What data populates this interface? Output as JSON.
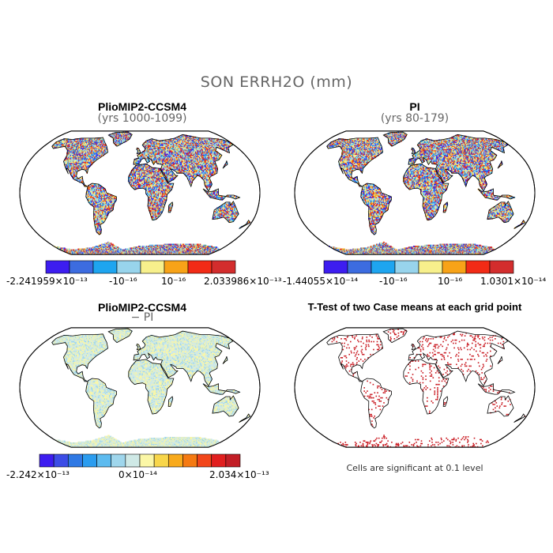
{
  "figure": {
    "title": "SON ERRH2O (mm)"
  },
  "panels": [
    {
      "title": "PlioMIP2-CCSM4",
      "subtitle": "(yrs 1000-1099)",
      "pattern": "mixed",
      "colorbar": {
        "colors": [
          "#3d1df0",
          "#3c6ce0",
          "#1ea5f0",
          "#98d4ec",
          "#f7f08c",
          "#f8a318",
          "#f22b16",
          "#d32d2d"
        ],
        "min_label": "-2.241959×10⁻¹³",
        "mid_left_label": "-10⁻¹⁶",
        "mid_right_label": "10⁻¹⁶",
        "max_label": "2.033986×10⁻¹³"
      }
    },
    {
      "title": "PI",
      "subtitle": "(yrs 80-179)",
      "pattern": "mixed",
      "colorbar": {
        "colors": [
          "#3d1df0",
          "#3c6ce0",
          "#1ea5f0",
          "#98d4ec",
          "#f7f08c",
          "#f8a318",
          "#f22b16",
          "#d32d2d"
        ],
        "min_label": "-1.44055×10⁻¹⁴",
        "mid_left_label": "-10⁻¹⁶",
        "mid_right_label": "10⁻¹⁶",
        "max_label": "1.0301×10⁻¹⁴"
      }
    },
    {
      "title": "PlioMIP2-CCSM4",
      "subtitle": "− PI",
      "pattern": "pale",
      "colorbar": {
        "colors": [
          "#3d1df0",
          "#3c4de6",
          "#2f79e4",
          "#2a9cef",
          "#5dbbef",
          "#9fd6ec",
          "#cfe9e6",
          "#fbf7a6",
          "#f8d64a",
          "#f8aa1c",
          "#f57a12",
          "#f2461a",
          "#e11f1f",
          "#c21e26"
        ],
        "min_label": "-2.242×10⁻¹³",
        "mid_label": "0×10⁻¹⁴",
        "max_label": "2.034×10⁻¹³"
      }
    },
    {
      "title": "T-Test of two Case means at each grid point",
      "subtitle": "",
      "pattern": "ttest",
      "note": "Cells are significant at 0.1 level"
    }
  ]
}
